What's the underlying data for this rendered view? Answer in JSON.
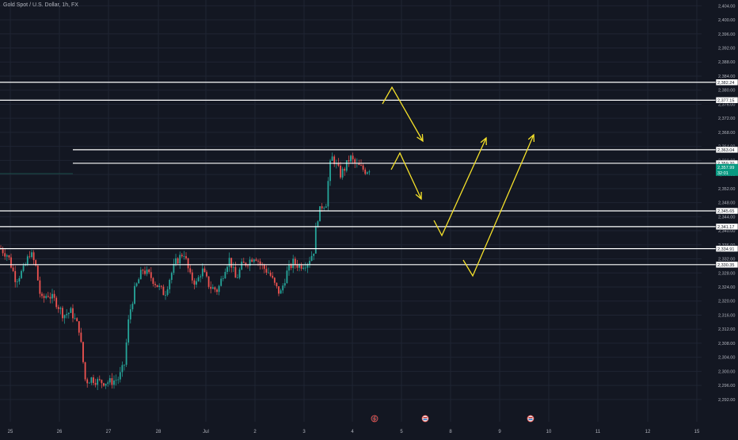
{
  "title": "Gold Spot / U.S. Dollar, 1h, FX",
  "colors": {
    "background": "#131722",
    "up": "#26a69a",
    "down": "#ef5350",
    "level_line": "#ffffff",
    "arrow": "#f5e12a",
    "current_price_bg": "#089981",
    "axis_text": "#b2b5be",
    "grid": "#1f2433"
  },
  "chart_data": {
    "type": "candlestick",
    "title": "Gold Spot / U.S. Dollar, 1h, FX",
    "y_axis": {
      "position": "right",
      "range": [
        2288,
        2404
      ],
      "ticks": [
        "2,292.00",
        "2,296.00",
        "2,300.00",
        "2,304.00",
        "2,308.00",
        "2,312.00",
        "2,316.00",
        "2,320.00",
        "2,324.00",
        "2,328.00",
        "2,332.00",
        "2,336.00",
        "2,340.00",
        "2,344.00",
        "2,348.00",
        "2,352.00",
        "2,356.00",
        "2,360.00",
        "2,364.00",
        "2,368.00",
        "2,372.00",
        "2,376.00",
        "2,380.00",
        "2,384.00",
        "2,388.00",
        "2,392.00",
        "2,396.00",
        "2,400.00",
        "2,404.00"
      ]
    },
    "x_axis": {
      "labels": [
        "25",
        "26",
        "27",
        "28",
        "Jul",
        "2",
        "3",
        "4",
        "5",
        "8",
        "9",
        "10",
        "11",
        "12",
        "15"
      ]
    },
    "horizontal_levels": [
      {
        "value": 2382.24,
        "label": "2,382.24"
      },
      {
        "value": 2377.15,
        "label": "2,377.15"
      },
      {
        "value": 2363.04,
        "label": "2,363.04"
      },
      {
        "value": 2359.2,
        "label": "2,359.20"
      },
      {
        "value": 2345.65,
        "label": "2,345.65"
      },
      {
        "value": 2341.17,
        "label": "2,341.17"
      },
      {
        "value": 2334.91,
        "label": "2,334.91"
      },
      {
        "value": 2330.35,
        "label": "2,330.35"
      }
    ],
    "current_price": {
      "value": 2357.99,
      "label": "2,357.99",
      "countdown": "32:01"
    },
    "grid": true,
    "event_markers": [
      "lightning",
      "flag",
      "flag"
    ]
  }
}
